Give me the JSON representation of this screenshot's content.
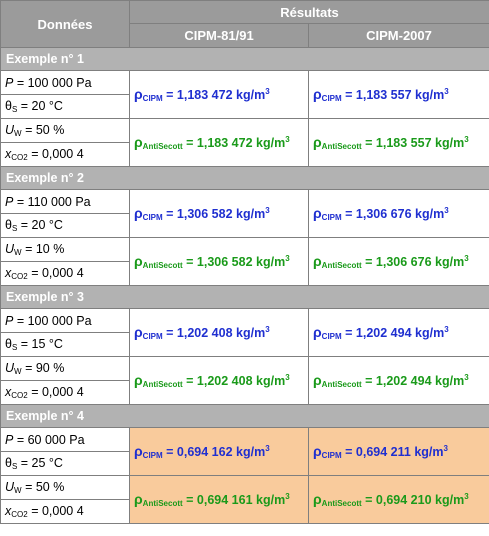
{
  "header": {
    "donnees": "Données",
    "resultats": "Résultats",
    "col1": "CIPM-81/91",
    "col2": "CIPM-2007"
  },
  "labels": {
    "p": "P",
    "theta": "θ",
    "theta_sub": "S",
    "uw": "U",
    "uw_sub": "W",
    "x": "x",
    "x_sub": "CO2",
    "rho": "ρ",
    "rho_cipm_sub": "CIPM",
    "rho_antis_sub": "AntiSecott",
    "unit": "kg/m",
    "unit_sup": "3"
  },
  "examples": [
    {
      "title": "Exemple n° 1",
      "p": "= 100 000 Pa",
      "theta": "= 20 °C",
      "uw": "= 50 %",
      "x": "= 0,000 4",
      "cipm_81": "= 1,183 472",
      "cipm_2007": "= 1,183 557",
      "antis_81": "= 1,183 472",
      "antis_2007": "= 1,183 557",
      "highlight": false
    },
    {
      "title": "Exemple n° 2",
      "p": "= 110 000 Pa",
      "theta": "= 20 °C",
      "uw": "= 10 %",
      "x": "= 0,000 4",
      "cipm_81": "= 1,306 582",
      "cipm_2007": "= 1,306 676",
      "antis_81": "= 1,306 582",
      "antis_2007": "= 1,306 676",
      "highlight": false
    },
    {
      "title": "Exemple n° 3",
      "p": "= 100 000 Pa",
      "theta": "= 15 °C",
      "uw": "= 90 %",
      "x": "= 0,000 4",
      "cipm_81": "= 1,202 408",
      "cipm_2007": "= 1,202 494",
      "antis_81": "= 1,202 408",
      "antis_2007": "= 1,202 494",
      "highlight": false
    },
    {
      "title": "Exemple n° 4",
      "p": "= 60 000 Pa",
      "theta": "= 25 °C",
      "uw": "= 50 %",
      "x": "= 0,000 4",
      "cipm_81": "= 0,694 162",
      "cipm_2007": "= 0,694 211",
      "antis_81": "= 0,694 161",
      "antis_2007": "= 0,694 210",
      "highlight": true
    }
  ],
  "colors": {
    "header_bg": "#9b9b9b",
    "section_bg": "#b2b2b2",
    "cipm_text": "#1f2fd0",
    "antis_text": "#1a9a1a",
    "highlight_bg": "#f9cb9c"
  }
}
